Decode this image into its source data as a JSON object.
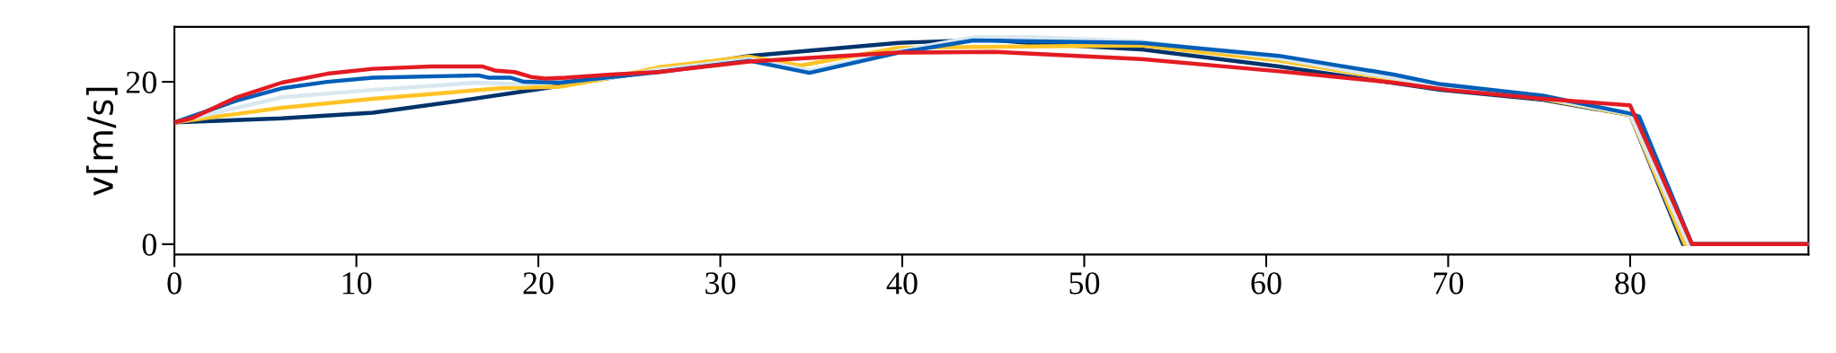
{
  "chart_data": {
    "type": "line",
    "ylabel": "v[m/s]",
    "xlim": [
      0,
      89.8
    ],
    "ylim": [
      -1.275,
      26.775
    ],
    "xticks": [
      0,
      10,
      20,
      30,
      40,
      50,
      60,
      70,
      80
    ],
    "yticks": [
      0,
      20
    ],
    "grid": false,
    "legend": false,
    "marker": "none",
    "line_style": "solid",
    "series": [
      {
        "color": "#00336b",
        "x": [
          0,
          5.9,
          10.9,
          15.8,
          19.1,
          20,
          24,
          31.6,
          39.8,
          44.7,
          47.4,
          53.1,
          60.7,
          69.6,
          75.2,
          80,
          82.9,
          89.8
        ],
        "values": [
          15,
          15.5,
          16.2,
          17.7,
          18.8,
          19.1,
          20.5,
          23.2,
          24.8,
          25.2,
          24.7,
          24,
          21.9,
          19,
          17.8,
          15.9,
          0,
          0
        ]
      },
      {
        "color": "#ffc425",
        "x": [
          0,
          5.9,
          10.9,
          17.9,
          21.2,
          24,
          26.6,
          31.6,
          34.4,
          39.8,
          53.1,
          60.7,
          69.6,
          75.2,
          80,
          83,
          89.8
        ],
        "values": [
          15,
          16.8,
          17.9,
          19.2,
          19.4,
          20.5,
          21.8,
          23.1,
          22,
          24.2,
          24.5,
          22.6,
          19.3,
          17.9,
          15.9,
          0,
          0
        ]
      },
      {
        "color": "#d9e8f0",
        "x": [
          0,
          5.9,
          10.9,
          16.6,
          19.1,
          24,
          26.6,
          31.6,
          34.9,
          39.8,
          43.9,
          47.4,
          53.1,
          60.7,
          69.6,
          75.2,
          80,
          83.2,
          89.8
        ],
        "values": [
          15,
          18.1,
          19,
          19.9,
          19.7,
          20.5,
          21.5,
          22.8,
          21.4,
          23.8,
          25.5,
          25.5,
          25,
          22.9,
          19.4,
          18,
          16,
          0,
          0
        ]
      },
      {
        "color": "#005eb8",
        "x": [
          0,
          3.43,
          5.9,
          8.4,
          10.9,
          16.7,
          17.3,
          18.5,
          19.2,
          21.2,
          24,
          26.6,
          31.6,
          34.9,
          39.8,
          43.9,
          53.1,
          60.7,
          67,
          69.6,
          75.2,
          80,
          80.5,
          83.4,
          89.8
        ],
        "values": [
          15,
          17.7,
          19.2,
          20,
          20.5,
          20.8,
          20.5,
          20.5,
          20,
          19.9,
          20.6,
          21.2,
          22.6,
          21.1,
          23.6,
          25.1,
          24.8,
          23.2,
          20.9,
          19.7,
          18.3,
          16.1,
          15.7,
          0,
          0
        ]
      },
      {
        "color": "#e31b23",
        "x": [
          0,
          0.95,
          3.43,
          5.9,
          8.4,
          10.9,
          14.1,
          16.9,
          17.6,
          18.7,
          19.6,
          20.4,
          21.5,
          24,
          26.6,
          31.6,
          39.8,
          45.1,
          53.1,
          60.7,
          67,
          70,
          75.2,
          80,
          83.4,
          89.8
        ],
        "values": [
          15,
          15.5,
          18.1,
          19.9,
          21,
          21.6,
          21.9,
          21.9,
          21.4,
          21.2,
          20.6,
          20.4,
          20.5,
          20.9,
          21.2,
          22.5,
          23.6,
          23.7,
          22.8,
          21.3,
          19.9,
          19,
          17.9,
          17.1,
          0,
          0
        ]
      }
    ]
  }
}
